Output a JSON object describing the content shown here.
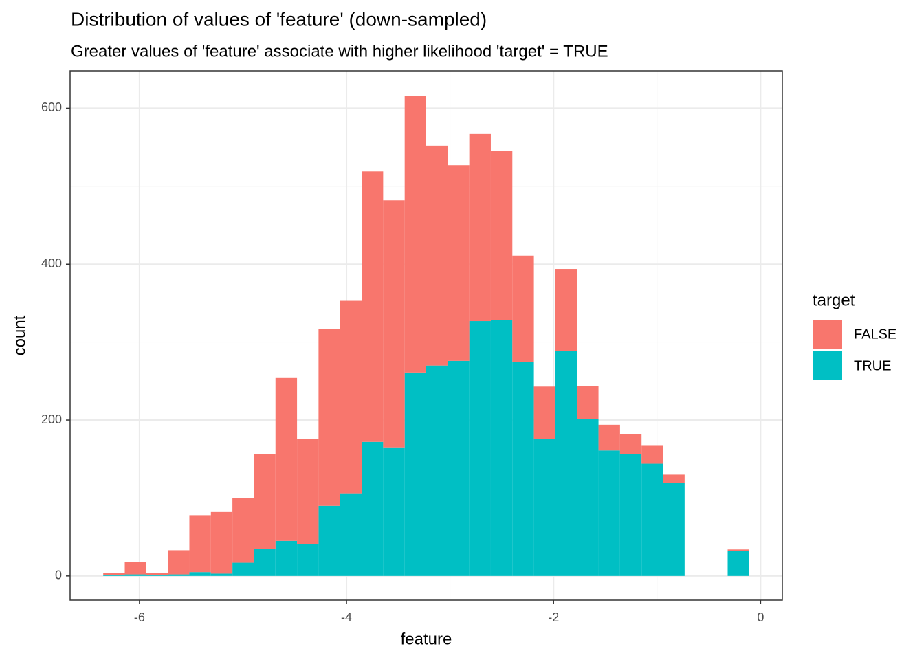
{
  "chart_data": {
    "type": "histogram",
    "title": "Distribution of values of 'feature' (down-sampled)",
    "subtitle": "Greater values of 'feature' associate with higher likelihood 'target' = TRUE",
    "x_label": "feature",
    "y_label": "count",
    "legend_title": "target",
    "legend_position": "right",
    "grid": true,
    "stacked": true,
    "bins": [
      -6.35,
      -6.142,
      -5.934,
      -5.726,
      -5.518,
      -5.31,
      -5.102,
      -4.894,
      -4.686,
      -4.478,
      -4.27,
      -4.062,
      -3.854,
      -3.646,
      -3.438,
      -3.23,
      -3.022,
      -2.814,
      -2.606,
      -2.398,
      -2.19,
      -1.982,
      -1.774,
      -1.566,
      -1.358,
      -1.15,
      -0.942,
      -0.734,
      -0.526,
      -0.318,
      -0.11
    ],
    "series": [
      {
        "name": "FALSE",
        "color": "#F8766D",
        "values": [
          3,
          16,
          3,
          31,
          73,
          79,
          83,
          121,
          209,
          135,
          227,
          247,
          347,
          317,
          355,
          282,
          251,
          240,
          217,
          136,
          67,
          105,
          43,
          33,
          26,
          23,
          11,
          0,
          0,
          2
        ]
      },
      {
        "name": "TRUE",
        "color": "#00BFC4",
        "values": [
          1,
          2,
          1,
          2,
          5,
          3,
          17,
          35,
          45,
          41,
          90,
          106,
          172,
          165,
          261,
          270,
          276,
          327,
          328,
          275,
          176,
          289,
          201,
          161,
          156,
          144,
          119,
          0,
          0,
          32
        ]
      }
    ],
    "xlim": [
      -6.67,
      0.21
    ],
    "ylim": [
      -31,
      648
    ],
    "xticks": [
      -6,
      -4,
      -2,
      0
    ],
    "yticks": [
      0,
      200,
      400,
      600
    ]
  }
}
